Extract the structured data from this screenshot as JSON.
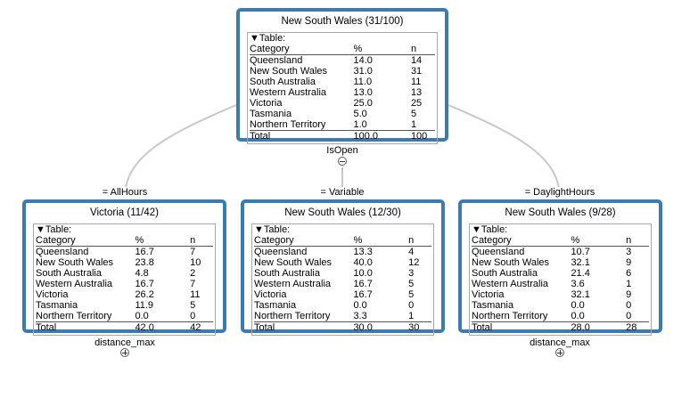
{
  "root": {
    "title": "New South Wales (31/100)",
    "table_label": "▼Table:",
    "headers": [
      "Category",
      "%",
      "n"
    ],
    "rows": [
      [
        "Queensland",
        "14.0",
        "14"
      ],
      [
        "New South Wales",
        "31.0",
        "31"
      ],
      [
        "South Australia",
        "11.0",
        "11"
      ],
      [
        "Western Australia",
        "13.0",
        "13"
      ],
      [
        "Victoria",
        "25.0",
        "25"
      ],
      [
        "Tasmania",
        "5.0",
        "5"
      ],
      [
        "Northern Territory",
        "1.0",
        "1"
      ]
    ],
    "total": [
      "Total",
      "100.0",
      "100"
    ],
    "split_variable": "IsOpen"
  },
  "children": [
    {
      "edge_label": "= AllHours",
      "title": "Victoria (11/42)",
      "table_label": "▼Table:",
      "headers": [
        "Category",
        "%",
        "n"
      ],
      "rows": [
        [
          "Queensland",
          "16.7",
          "7"
        ],
        [
          "New South Wales",
          "23.8",
          "10"
        ],
        [
          "South Australia",
          "4.8",
          "2"
        ],
        [
          "Western Australia",
          "16.7",
          "7"
        ],
        [
          "Victoria",
          "26.2",
          "11"
        ],
        [
          "Tasmania",
          "11.9",
          "5"
        ],
        [
          "Northern Territory",
          "0.0",
          "0"
        ]
      ],
      "total": [
        "Total",
        "42.0",
        "42"
      ],
      "split_variable": "distance_max"
    },
    {
      "edge_label": "= Variable",
      "title": "New South Wales (12/30)",
      "table_label": "▼Table:",
      "headers": [
        "Category",
        "%",
        "n"
      ],
      "rows": [
        [
          "Queensland",
          "13.3",
          "4"
        ],
        [
          "New South Wales",
          "40.0",
          "12"
        ],
        [
          "South Australia",
          "10.0",
          "3"
        ],
        [
          "Western Australia",
          "16.7",
          "5"
        ],
        [
          "Victoria",
          "16.7",
          "5"
        ],
        [
          "Tasmania",
          "0.0",
          "0"
        ],
        [
          "Northern Territory",
          "3.3",
          "1"
        ]
      ],
      "total": [
        "Total",
        "30.0",
        "30"
      ],
      "split_variable": ""
    },
    {
      "edge_label": "= DaylightHours",
      "title": "New South Wales (9/28)",
      "table_label": "▼Table:",
      "headers": [
        "Category",
        "%",
        "n"
      ],
      "rows": [
        [
          "Queensland",
          "10.7",
          "3"
        ],
        [
          "New South Wales",
          "32.1",
          "9"
        ],
        [
          "South Australia",
          "21.4",
          "6"
        ],
        [
          "Western Australia",
          "3.6",
          "1"
        ],
        [
          "Victoria",
          "32.1",
          "9"
        ],
        [
          "Tasmania",
          "0.0",
          "0"
        ],
        [
          "Northern Territory",
          "0.0",
          "0"
        ]
      ],
      "total": [
        "Total",
        "28.0",
        "28"
      ],
      "split_variable": "distance_max"
    }
  ],
  "colors": {
    "node_border": "#3d7ab0",
    "edge": "#c8c8c8"
  }
}
